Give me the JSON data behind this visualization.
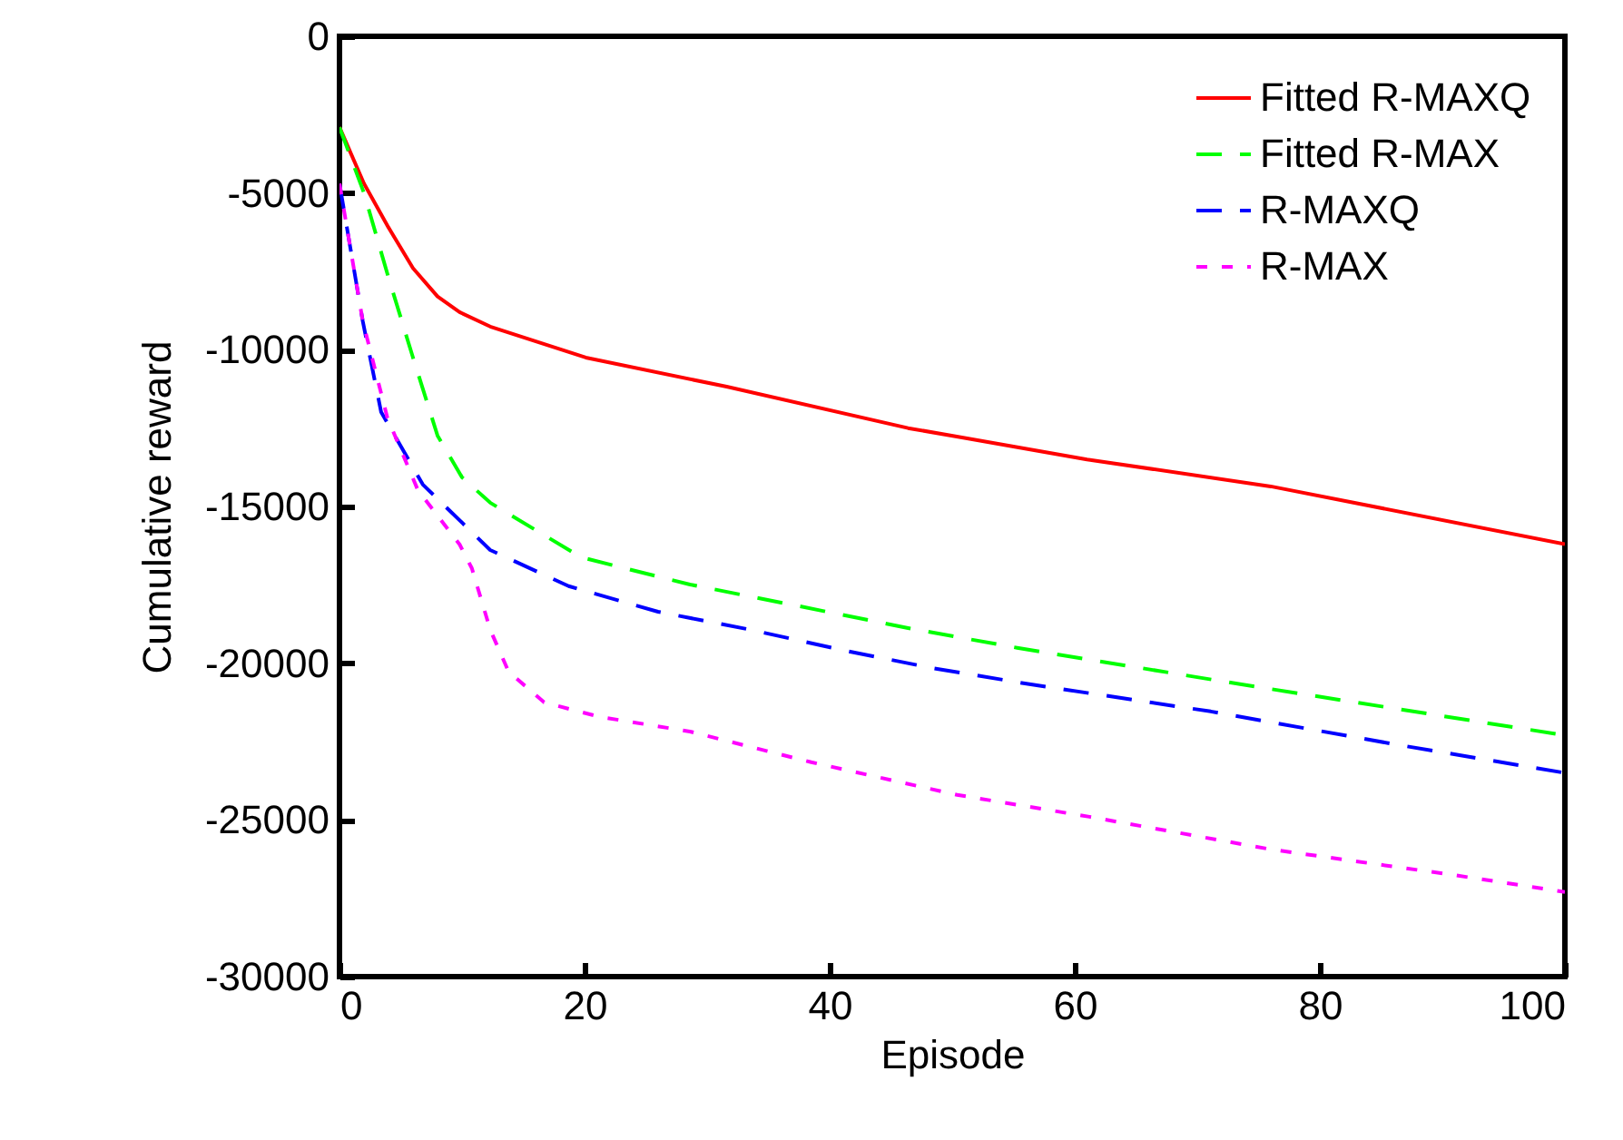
{
  "chart_data": {
    "type": "line",
    "xlabel": "Episode",
    "ylabel": "Cumulative reward",
    "xlim": [
      0,
      100
    ],
    "xticks": [
      0,
      20,
      40,
      60,
      80,
      100
    ],
    "ylim": [
      -30000,
      0
    ],
    "yticks": [
      -30000,
      -25000,
      -20000,
      -15000,
      -10000,
      -5000,
      0
    ],
    "legend": "top right",
    "grid": false,
    "series": [
      {
        "name": "Fitted R-MAXQ",
        "color": "#ff0000",
        "line_style": "solid",
        "x": [
          0,
          2,
          4,
          6,
          8,
          9.8,
          12.3,
          20.1,
          31.6,
          46.4,
          50.8,
          61,
          76,
          100
        ],
        "values": [
          -2900,
          -4700,
          -6100,
          -7400,
          -8300,
          -8800,
          -9260,
          -10250,
          -11180,
          -12500,
          -12800,
          -13500,
          -14360,
          -16200
        ]
      },
      {
        "name": "Fitted R-MAX",
        "color": "#00ff00",
        "line_style": "dashed",
        "x": [
          0,
          2,
          4,
          6,
          8,
          10,
          12.3,
          19.7,
          28.6,
          37.5,
          46.4,
          55.3,
          73.5,
          100
        ],
        "values": [
          -2900,
          -5000,
          -7700,
          -10250,
          -12740,
          -14070,
          -14880,
          -16620,
          -17490,
          -18180,
          -18880,
          -19510,
          -20670,
          -22300
        ]
      },
      {
        "name": "R-MAXQ",
        "color": "#0000ff",
        "line_style": "dashed",
        "x": [
          0,
          1.9,
          3.4,
          6.8,
          12.3,
          18.7,
          26,
          33.5,
          40.9,
          48.3,
          56.3,
          71.1,
          86,
          100
        ],
        "values": [
          -4700,
          -9090,
          -11990,
          -14300,
          -16390,
          -17540,
          -18360,
          -18930,
          -19570,
          -20150,
          -20670,
          -21540,
          -22580,
          -23500
        ]
      },
      {
        "name": "R-MAX",
        "color": "#ff00ff",
        "line_style": "dotted",
        "x": [
          0,
          1.9,
          3.9,
          6.4,
          9.8,
          10.8,
          12.3,
          13.8,
          16.7,
          21.2,
          28.6,
          38.5,
          50.4,
          61.2,
          76,
          90.8,
          100
        ],
        "values": [
          -4700,
          -9090,
          -12160,
          -14480,
          -16210,
          -16970,
          -18930,
          -20270,
          -21250,
          -21710,
          -22180,
          -23160,
          -24200,
          -24900,
          -25940,
          -26750,
          -27300
        ]
      }
    ]
  }
}
